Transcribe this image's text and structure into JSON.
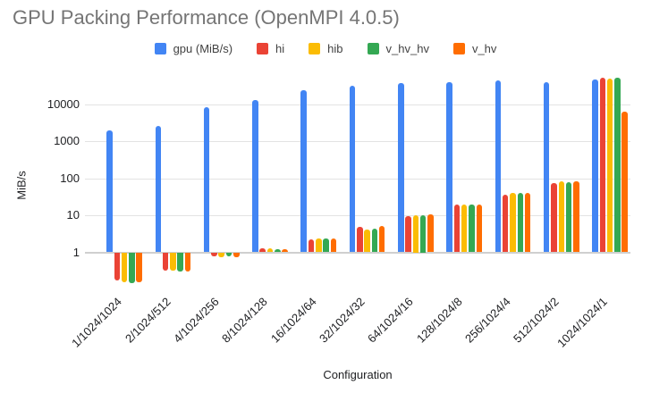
{
  "title": "GPU Packing Performance (OpenMPI 4.0.5)",
  "chart_data": {
    "type": "bar",
    "title": "GPU Packing Performance (OpenMPI 4.0.5)",
    "xlabel": "Configuration",
    "ylabel": "MiB/s",
    "y_scale": "log",
    "y_ticks": [
      1,
      10,
      100,
      1000,
      10000
    ],
    "ylim": [
      0.1,
      60000
    ],
    "grid": true,
    "legend_position": "top",
    "categories": [
      "1/1024/1024",
      "2/1024/512",
      "4/1024/256",
      "8/1024/128",
      "16/1024/64",
      "32/1024/32",
      "64/1024/16",
      "128/1024/8",
      "256/1024/4",
      "512/1024/2",
      "1024/1024/1"
    ],
    "series": [
      {
        "name": "gpu (MiB/s)",
        "color": "#4285F4",
        "values": [
          2000,
          2500,
          8300,
          12500,
          23000,
          32000,
          37000,
          39000,
          43000,
          39000,
          47000
        ]
      },
      {
        "name": "hi",
        "color": "#EA4335",
        "values": [
          0.17,
          0.32,
          0.8,
          1.3,
          2.2,
          4.8,
          9.5,
          19,
          35,
          74,
          51000
        ]
      },
      {
        "name": "hib",
        "color": "#FBBC04",
        "values": [
          0.16,
          0.32,
          0.75,
          1.25,
          2.3,
          4.2,
          10,
          20,
          40,
          82,
          49000
        ]
      },
      {
        "name": "v_hv_hv",
        "color": "#34A853",
        "values": [
          0.15,
          0.3,
          0.78,
          1.2,
          2.3,
          4.4,
          10,
          20,
          41,
          80,
          52000
        ]
      },
      {
        "name": "v_hv",
        "color": "#FF6D01",
        "values": [
          0.16,
          0.31,
          0.75,
          1.2,
          2.4,
          5.1,
          10.5,
          20,
          39,
          82,
          6300
        ]
      }
    ]
  }
}
